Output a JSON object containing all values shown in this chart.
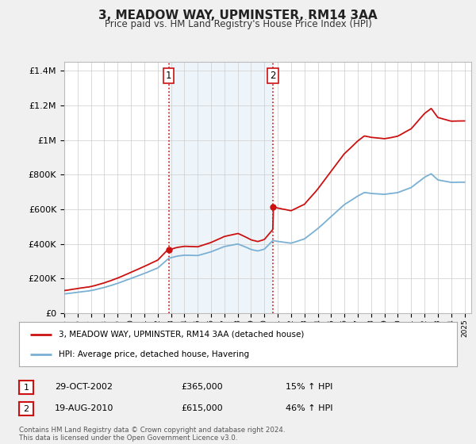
{
  "title": "3, MEADOW WAY, UPMINSTER, RM14 3AA",
  "subtitle": "Price paid vs. HM Land Registry's House Price Index (HPI)",
  "legend_line1": "3, MEADOW WAY, UPMINSTER, RM14 3AA (detached house)",
  "legend_line2": "HPI: Average price, detached house, Havering",
  "annotation1_label": "1",
  "annotation1_date": "29-OCT-2002",
  "annotation1_price": "£365,000",
  "annotation1_hpi": "15% ↑ HPI",
  "annotation2_label": "2",
  "annotation2_date": "19-AUG-2010",
  "annotation2_price": "£615,000",
  "annotation2_hpi": "46% ↑ HPI",
  "footer": "Contains HM Land Registry data © Crown copyright and database right 2024.\nThis data is licensed under the Open Government Licence v3.0.",
  "sale1_year": 2002.83,
  "sale1_value": 365000,
  "sale2_year": 2010.63,
  "sale2_value": 615000,
  "hpi_color": "#7ab0d4",
  "price_color": "#cc1111",
  "vline_color": "#cc1111",
  "shade_color": "#ddeeff",
  "background_color": "#f0f0f0",
  "plot_bg_color": "#ffffff",
  "ylim": [
    0,
    1450000
  ],
  "xlim_start": 1995,
  "xlim_end": 2025.5
}
